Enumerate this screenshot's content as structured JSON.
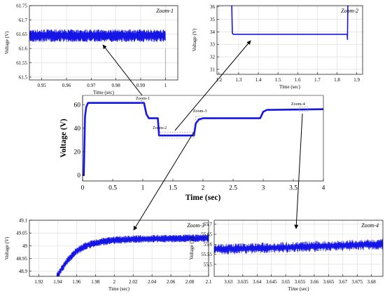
{
  "colors": {
    "trace": "#1515e6",
    "axis": "#000000",
    "grid": "#d9d9d9",
    "zoombox": "#888888"
  },
  "chart_data": [
    {
      "id": "zoom1",
      "type": "line",
      "zoom_label": "Zoom-1",
      "xlabel": "Time (sec)",
      "ylabel": "Voltage (V)",
      "xlim": [
        0.945,
        1.005
      ],
      "ylim": [
        61.49,
        61.75
      ],
      "xticks": [
        0.95,
        0.96,
        0.97,
        0.98,
        0.99,
        1
      ],
      "yticks": [
        61.5,
        61.55,
        61.6,
        61.65,
        61.7,
        61.75
      ],
      "grid": true,
      "series": [
        {
          "style": "noisy",
          "x_end": 1.0,
          "base": [
            [
              0.945,
              61.645
            ],
            [
              1.0,
              61.645
            ]
          ],
          "noise": 0.018,
          "dense": true
        }
      ]
    },
    {
      "id": "zoom2",
      "type": "line",
      "zoom_label": "Zoom-2",
      "xlabel": "Time (sec)",
      "ylabel": "Voltage (V)",
      "xlim": [
        1.19,
        1.93
      ],
      "ylim": [
        30.6,
        36.1
      ],
      "xticks": [
        1.2,
        1.3,
        1.4,
        1.5,
        1.6,
        1.7,
        1.8,
        1.9
      ],
      "yticks": [
        31,
        32,
        33,
        34,
        35,
        36
      ],
      "grid": true,
      "series": [
        {
          "style": "clean",
          "base": [
            [
              1.265,
              36.2
            ],
            [
              1.268,
              33.9
            ],
            [
              1.272,
              33.8
            ],
            [
              1.852,
              33.8
            ],
            [
              1.853,
              33.4
            ],
            [
              1.855,
              36.2
            ]
          ],
          "noise": 0
        }
      ]
    },
    {
      "id": "main",
      "type": "line",
      "xlabel": "Time (sec)",
      "ylabel": "Voltage (V)",
      "xlim": [
        0,
        4
      ],
      "ylim": [
        -5,
        68
      ],
      "xticks": [
        0,
        0.5,
        1,
        1.5,
        2,
        2.5,
        3,
        3.5,
        4
      ],
      "ytick_values": [
        0,
        20,
        40,
        60
      ],
      "grid": false,
      "zoom_markers": [
        "Zoom-1",
        "Zoom-2",
        "Zoom-3",
        "Zoom-4"
      ],
      "series": [
        {
          "style": "thick",
          "base": [
            [
              0,
              0
            ],
            [
              0.02,
              0
            ],
            [
              0.04,
              50
            ],
            [
              0.06,
              58
            ],
            [
              0.09,
              61.6
            ],
            [
              0.98,
              61.6
            ],
            [
              1.02,
              61.6
            ],
            [
              1.06,
              52
            ],
            [
              1.1,
              48.5
            ],
            [
              1.25,
              48.5
            ],
            [
              1.27,
              33.8
            ],
            [
              1.85,
              33.8
            ],
            [
              1.88,
              44
            ],
            [
              1.93,
              47.5
            ],
            [
              2.0,
              48.5
            ],
            [
              2.95,
              48.5
            ],
            [
              3.0,
              54
            ],
            [
              3.06,
              55.6
            ],
            [
              4.0,
              56.2
            ]
          ],
          "noise": 0.3
        }
      ]
    },
    {
      "id": "zoom3",
      "type": "line",
      "zoom_label": "Zoom-3",
      "xlabel": "Time (sec)",
      "ylabel": "Voltage (V)",
      "xlim": [
        1.91,
        2.1
      ],
      "ylim": [
        48.88,
        49.1
      ],
      "xticks": [
        1.92,
        1.94,
        1.96,
        1.98,
        2,
        2.02,
        2.04,
        2.06,
        2.08,
        2.1
      ],
      "yticks": [
        48.9,
        48.95,
        49,
        49.05,
        49.1
      ],
      "grid": true,
      "series": [
        {
          "style": "noisy",
          "base": [
            [
              1.939,
              48.88
            ],
            [
              1.95,
              48.94
            ],
            [
              1.96,
              48.98
            ],
            [
              1.97,
              49.0
            ],
            [
              1.985,
              49.015
            ],
            [
              2.0,
              49.022
            ],
            [
              2.02,
              49.026
            ],
            [
              2.05,
              49.028
            ],
            [
              2.1,
              49.03
            ]
          ],
          "noise": 0.012,
          "dense": true
        }
      ]
    },
    {
      "id": "zoom4",
      "type": "line",
      "zoom_label": "Zoom-4",
      "xlabel": "Time (sec)",
      "ylabel": "Voltage (V)",
      "xlim": [
        3.625,
        3.684
      ],
      "ylim": [
        55.44,
        55.72
      ],
      "xticks": [
        3.63,
        3.635,
        3.64,
        3.645,
        3.65,
        3.655,
        3.66,
        3.665,
        3.67,
        3.675,
        3.68
      ],
      "yticks": [
        55.5,
        55.55,
        55.6,
        55.65,
        55.7
      ],
      "grid": true,
      "series": [
        {
          "style": "noisy",
          "base": [
            [
              3.625,
              55.575
            ],
            [
              3.65,
              55.585
            ],
            [
              3.684,
              55.6
            ]
          ],
          "noise": 0.022,
          "dense": false
        }
      ]
    }
  ]
}
